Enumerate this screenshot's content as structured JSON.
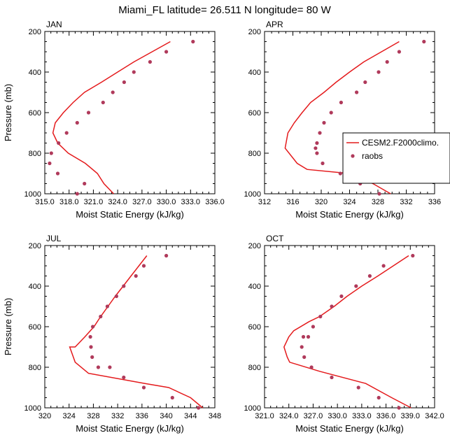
{
  "title": "Miami_FL  latitude= 26.511 N longitude= 80 W",
  "colors": {
    "model": "#e41a1c",
    "obs": "#b03a5b",
    "axis": "#000000"
  },
  "chart_data": [
    {
      "type": "line",
      "panel_label": "JAN",
      "xlabel": "Moist Static Energy (kJ/kg)",
      "ylabel": "Pressure (mb)",
      "xlim": [
        315,
        336
      ],
      "xticks": [
        315,
        318,
        321,
        324,
        327,
        330,
        333,
        336
      ],
      "xtick_labels": [
        "315.0",
        "318.0",
        "321.0",
        "324.0",
        "327.0",
        "330.0",
        "333.0",
        "336.0"
      ],
      "ylim": [
        200,
        1000
      ],
      "yticks": [
        200,
        400,
        600,
        800,
        1000
      ],
      "yreverse": true,
      "series": [
        {
          "name": "CESM2.F2000climo.",
          "kind": "line",
          "x": [
            330.5,
            326.0,
            324.0,
            322.0,
            319.9,
            318.5,
            317.3,
            316.3,
            316.0,
            316.6,
            317.9,
            320.0,
            321.5,
            322.3,
            323.5
          ],
          "y": [
            250,
            350,
            400,
            450,
            500,
            550,
            600,
            650,
            700,
            750,
            800,
            850,
            900,
            950,
            1000
          ]
        },
        {
          "name": "raobs",
          "kind": "scatter",
          "x": [
            333.3,
            330.0,
            328.0,
            326.0,
            324.8,
            323.4,
            322.2,
            320.4,
            319.0,
            317.7,
            316.7,
            315.8,
            315.6,
            316.6,
            319.9,
            319.0
          ],
          "y": [
            250,
            300,
            350,
            400,
            450,
            500,
            550,
            600,
            650,
            700,
            750,
            800,
            850,
            900,
            950,
            1000
          ]
        }
      ]
    },
    {
      "type": "line",
      "panel_label": "APR",
      "xlabel": "Moist Static Energy (kJ/kg)",
      "ylabel": "",
      "xlim": [
        312,
        336
      ],
      "xticks": [
        312,
        316,
        320,
        324,
        328,
        332,
        336
      ],
      "xtick_labels": [
        "312",
        "316",
        "320",
        "324",
        "328",
        "332",
        "336"
      ],
      "ylim": [
        200,
        1000
      ],
      "yticks": [
        200,
        400,
        600,
        800,
        1000
      ],
      "yreverse": true,
      "series": [
        {
          "name": "CESM2.F2000climo.",
          "kind": "line",
          "x": [
            331.0,
            326.0,
            324.0,
            322.1,
            320.4,
            318.5,
            317.3,
            316.2,
            315.3,
            314.9,
            316.6,
            318.0,
            323.9,
            327.3,
            329.8
          ],
          "y": [
            250,
            350,
            400,
            450,
            500,
            550,
            600,
            650,
            700,
            775,
            850,
            880,
            900,
            950,
            1000
          ]
        },
        {
          "name": "raobs",
          "kind": "scatter",
          "x": [
            334.5,
            331.0,
            329.3,
            328.1,
            326.2,
            325.0,
            322.8,
            321.4,
            320.4,
            319.8,
            319.4,
            319.2,
            319.4,
            320.2,
            322.7,
            325.5,
            328.2
          ],
          "y": [
            250,
            300,
            350,
            400,
            450,
            500,
            550,
            600,
            650,
            700,
            750,
            775,
            800,
            850,
            900,
            950,
            1000
          ]
        }
      ]
    },
    {
      "type": "line",
      "panel_label": "JUL",
      "xlabel": "Moist Static Energy (kJ/kg)",
      "ylabel": "Pressure (mb)",
      "xlim": [
        320,
        348
      ],
      "xticks": [
        320,
        324,
        328,
        332,
        336,
        340,
        344,
        348
      ],
      "xtick_labels": [
        "320",
        "324",
        "328",
        "332",
        "336",
        "340",
        "344",
        "348"
      ],
      "ylim": [
        200,
        1000
      ],
      "yticks": [
        200,
        400,
        600,
        800,
        1000
      ],
      "yreverse": true,
      "series": [
        {
          "name": "CESM2.F2000climo.",
          "kind": "line",
          "x": [
            336.8,
            335.5,
            334.2,
            332.9,
            331.6,
            330.4,
            329.2,
            328.1,
            326.6,
            325.0,
            324.1,
            325.0,
            327.2,
            336.5,
            340.4,
            344.0,
            346.0
          ],
          "y": [
            250,
            300,
            350,
            400,
            450,
            500,
            550,
            600,
            650,
            700,
            700,
            775,
            830,
            880,
            900,
            950,
            1000
          ]
        },
        {
          "name": "raobs",
          "kind": "scatter",
          "x": [
            340.0,
            336.3,
            335.0,
            333.0,
            331.8,
            330.3,
            329.2,
            327.9,
            327.5,
            327.6,
            327.8,
            328.8,
            330.7,
            333.0,
            336.3,
            341.0,
            345.3
          ],
          "y": [
            250,
            300,
            350,
            400,
            450,
            500,
            550,
            600,
            650,
            700,
            750,
            800,
            800,
            850,
            900,
            950,
            1000
          ]
        }
      ]
    },
    {
      "type": "line",
      "panel_label": "OCT",
      "xlabel": "Moist Static Energy (kJ/kg)",
      "ylabel": "",
      "xlim": [
        321,
        342
      ],
      "xticks": [
        321,
        324,
        327,
        330,
        333,
        336,
        339,
        342
      ],
      "xtick_labels": [
        "321.0",
        "324.0",
        "327.0",
        "330.0",
        "333.0",
        "336.0",
        "339.0",
        "342.0"
      ],
      "ylim": [
        200,
        1000
      ],
      "yticks": [
        200,
        400,
        600,
        800,
        1000
      ],
      "yreverse": true,
      "series": [
        {
          "name": "CESM2.F2000climo.",
          "kind": "line",
          "x": [
            338.8,
            335.0,
            333.0,
            331.2,
            329.6,
            327.8,
            326.5,
            324.6,
            324.0,
            323.4,
            323.8,
            324.1,
            327.8,
            333.5,
            336.7,
            339.1
          ],
          "y": [
            250,
            350,
            400,
            450,
            500,
            550,
            575,
            620,
            650,
            700,
            750,
            775,
            820,
            880,
            950,
            1000
          ]
        },
        {
          "name": "raobs",
          "kind": "scatter",
          "x": [
            339.3,
            335.7,
            334.0,
            332.3,
            330.5,
            329.3,
            327.9,
            327.0,
            326.4,
            325.8,
            325.6,
            325.9,
            326.8,
            329.3,
            332.6,
            335.1,
            337.6
          ],
          "y": [
            250,
            300,
            350,
            400,
            450,
            500,
            550,
            600,
            650,
            650,
            700,
            750,
            800,
            850,
            900,
            950,
            1000
          ]
        }
      ]
    }
  ],
  "legend": {
    "placement": "right of APR panel",
    "entries": [
      {
        "label": "CESM2.F2000climo.",
        "kind": "line"
      },
      {
        "label": "raobs",
        "kind": "scatter"
      }
    ]
  }
}
